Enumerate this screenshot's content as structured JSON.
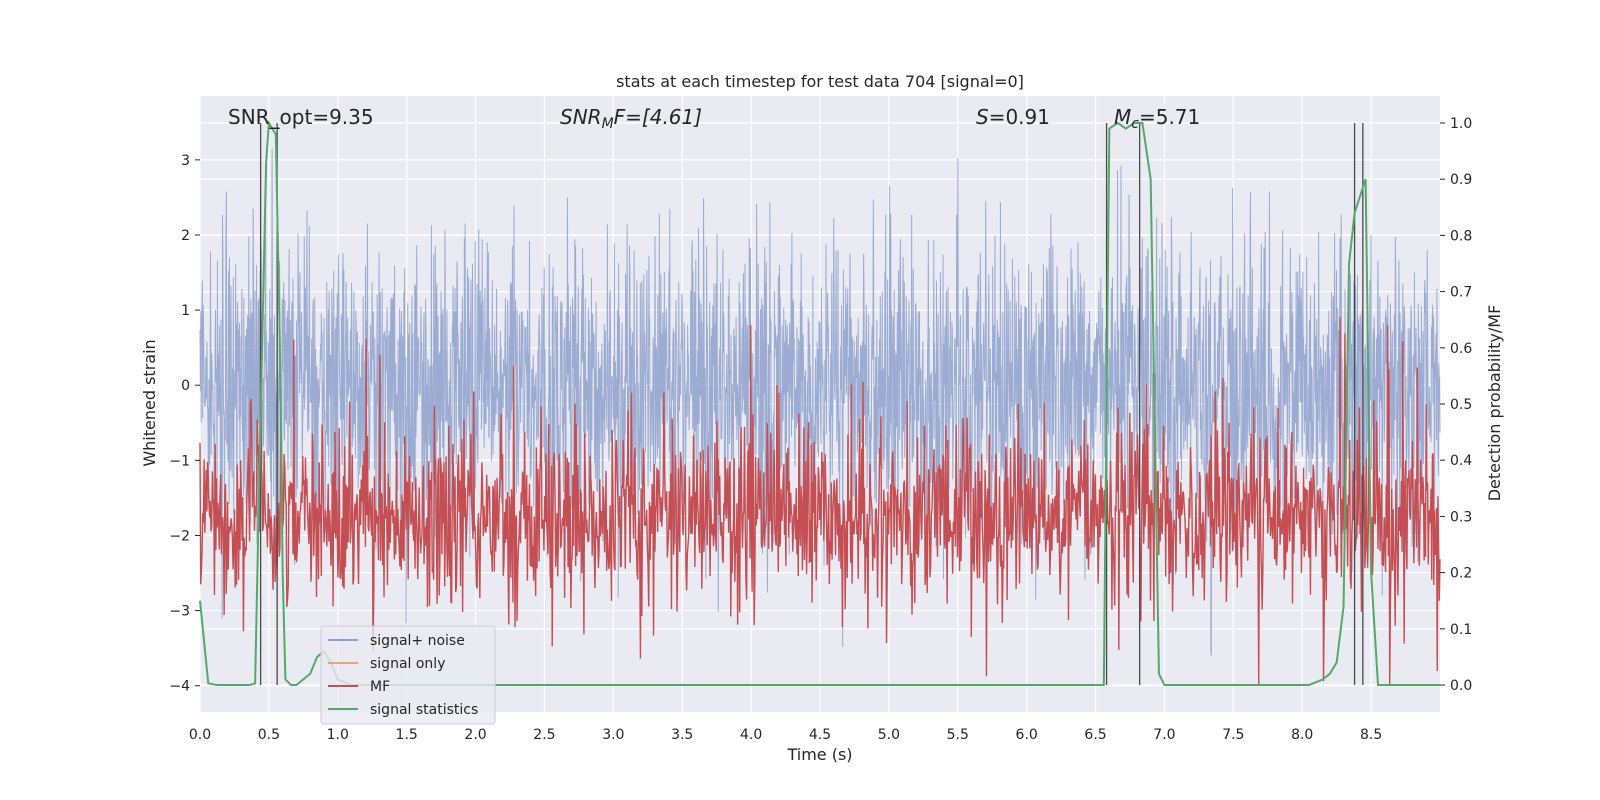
{
  "chart_data": {
    "type": "line",
    "title": "stats at each timestep for test data 704 [signal=0]",
    "xlabel": "Time (s)",
    "ylabel": "Whitened strain",
    "y2label": "Detection probability/MF",
    "xlim": [
      0.0,
      9.0
    ],
    "ylim": [
      -4.35,
      3.85
    ],
    "y2lim": [
      -0.048,
      1.048
    ],
    "xticks": [
      "0.0",
      "0.5",
      "1.0",
      "1.5",
      "2.0",
      "2.5",
      "3.0",
      "3.5",
      "4.0",
      "4.5",
      "5.0",
      "5.5",
      "6.0",
      "6.5",
      "7.0",
      "7.5",
      "8.0",
      "8.5"
    ],
    "yticks": [
      "3",
      "2",
      "1",
      "0",
      "−1",
      "−2",
      "−3",
      "−4"
    ],
    "y2ticks": [
      "0.0",
      "0.1",
      "0.2",
      "0.3",
      "0.4",
      "0.5",
      "0.6",
      "0.7",
      "0.8",
      "0.9",
      "1.0"
    ],
    "grid": true,
    "legend_position": "lower-left",
    "annotations": {
      "snr_opt": "SNR_opt=9.35",
      "snr_mf": "SNR",
      "snr_mf_sub": "M",
      "snr_mf_rest": "F=[4.61]",
      "s_italic": "S",
      "s_value": "=0.91",
      "mc_italic": "M",
      "mc_sub": "c",
      "mc_value": "=5.71"
    },
    "series": [
      {
        "name": "signal+ noise",
        "color": "#8da0cb",
        "noise_sigma": 0.95,
        "noise_range": [
          -3.6,
          3.5
        ]
      },
      {
        "name": "signal only",
        "color": "#e9a384",
        "values": []
      },
      {
        "name": "MF",
        "color": "#c44e52",
        "mean": 0.3,
        "range": [
          0.0,
          0.95
        ]
      },
      {
        "name": "signal statistics",
        "color": "#55a868",
        "axis": "y2",
        "x": [
          0.0,
          0.06,
          0.12,
          0.18,
          0.24,
          0.3,
          0.36,
          0.4,
          0.44,
          0.48,
          0.5,
          0.55,
          0.58,
          0.6,
          0.62,
          0.66,
          0.7,
          0.75,
          0.8,
          0.85,
          0.9,
          0.95,
          1.0,
          1.1,
          1.5,
          2.0,
          3.0,
          4.0,
          5.0,
          6.0,
          6.5,
          6.56,
          6.6,
          6.66,
          6.72,
          6.78,
          6.84,
          6.9,
          6.96,
          7.0,
          7.1,
          7.5,
          8.0,
          8.05,
          8.1,
          8.15,
          8.2,
          8.25,
          8.3,
          8.34,
          8.38,
          8.42,
          8.46,
          8.5,
          8.55,
          8.6,
          8.7,
          8.9,
          9.0
        ],
        "y": [
          0.15,
          0.003,
          0.0,
          0.0,
          0.0,
          0.0,
          0.0,
          0.003,
          0.48,
          0.93,
          1.0,
          0.98,
          0.6,
          0.2,
          0.01,
          0.0,
          0.0,
          0.01,
          0.02,
          0.05,
          0.06,
          0.04,
          0.01,
          0.0,
          0.0,
          0.0,
          0.0,
          0.0,
          0.0,
          0.0,
          0.0,
          0.0,
          0.99,
          1.0,
          0.99,
          1.0,
          1.0,
          0.9,
          0.02,
          0.0,
          0.0,
          0.0,
          0.0,
          0.0,
          0.005,
          0.01,
          0.02,
          0.04,
          0.14,
          0.75,
          0.84,
          0.87,
          0.9,
          0.2,
          0.0,
          0.0,
          0.0,
          0.0,
          0.0
        ]
      }
    ],
    "vertical_markers": [
      0.44,
      0.56,
      6.58,
      6.82,
      8.38,
      8.44
    ]
  }
}
